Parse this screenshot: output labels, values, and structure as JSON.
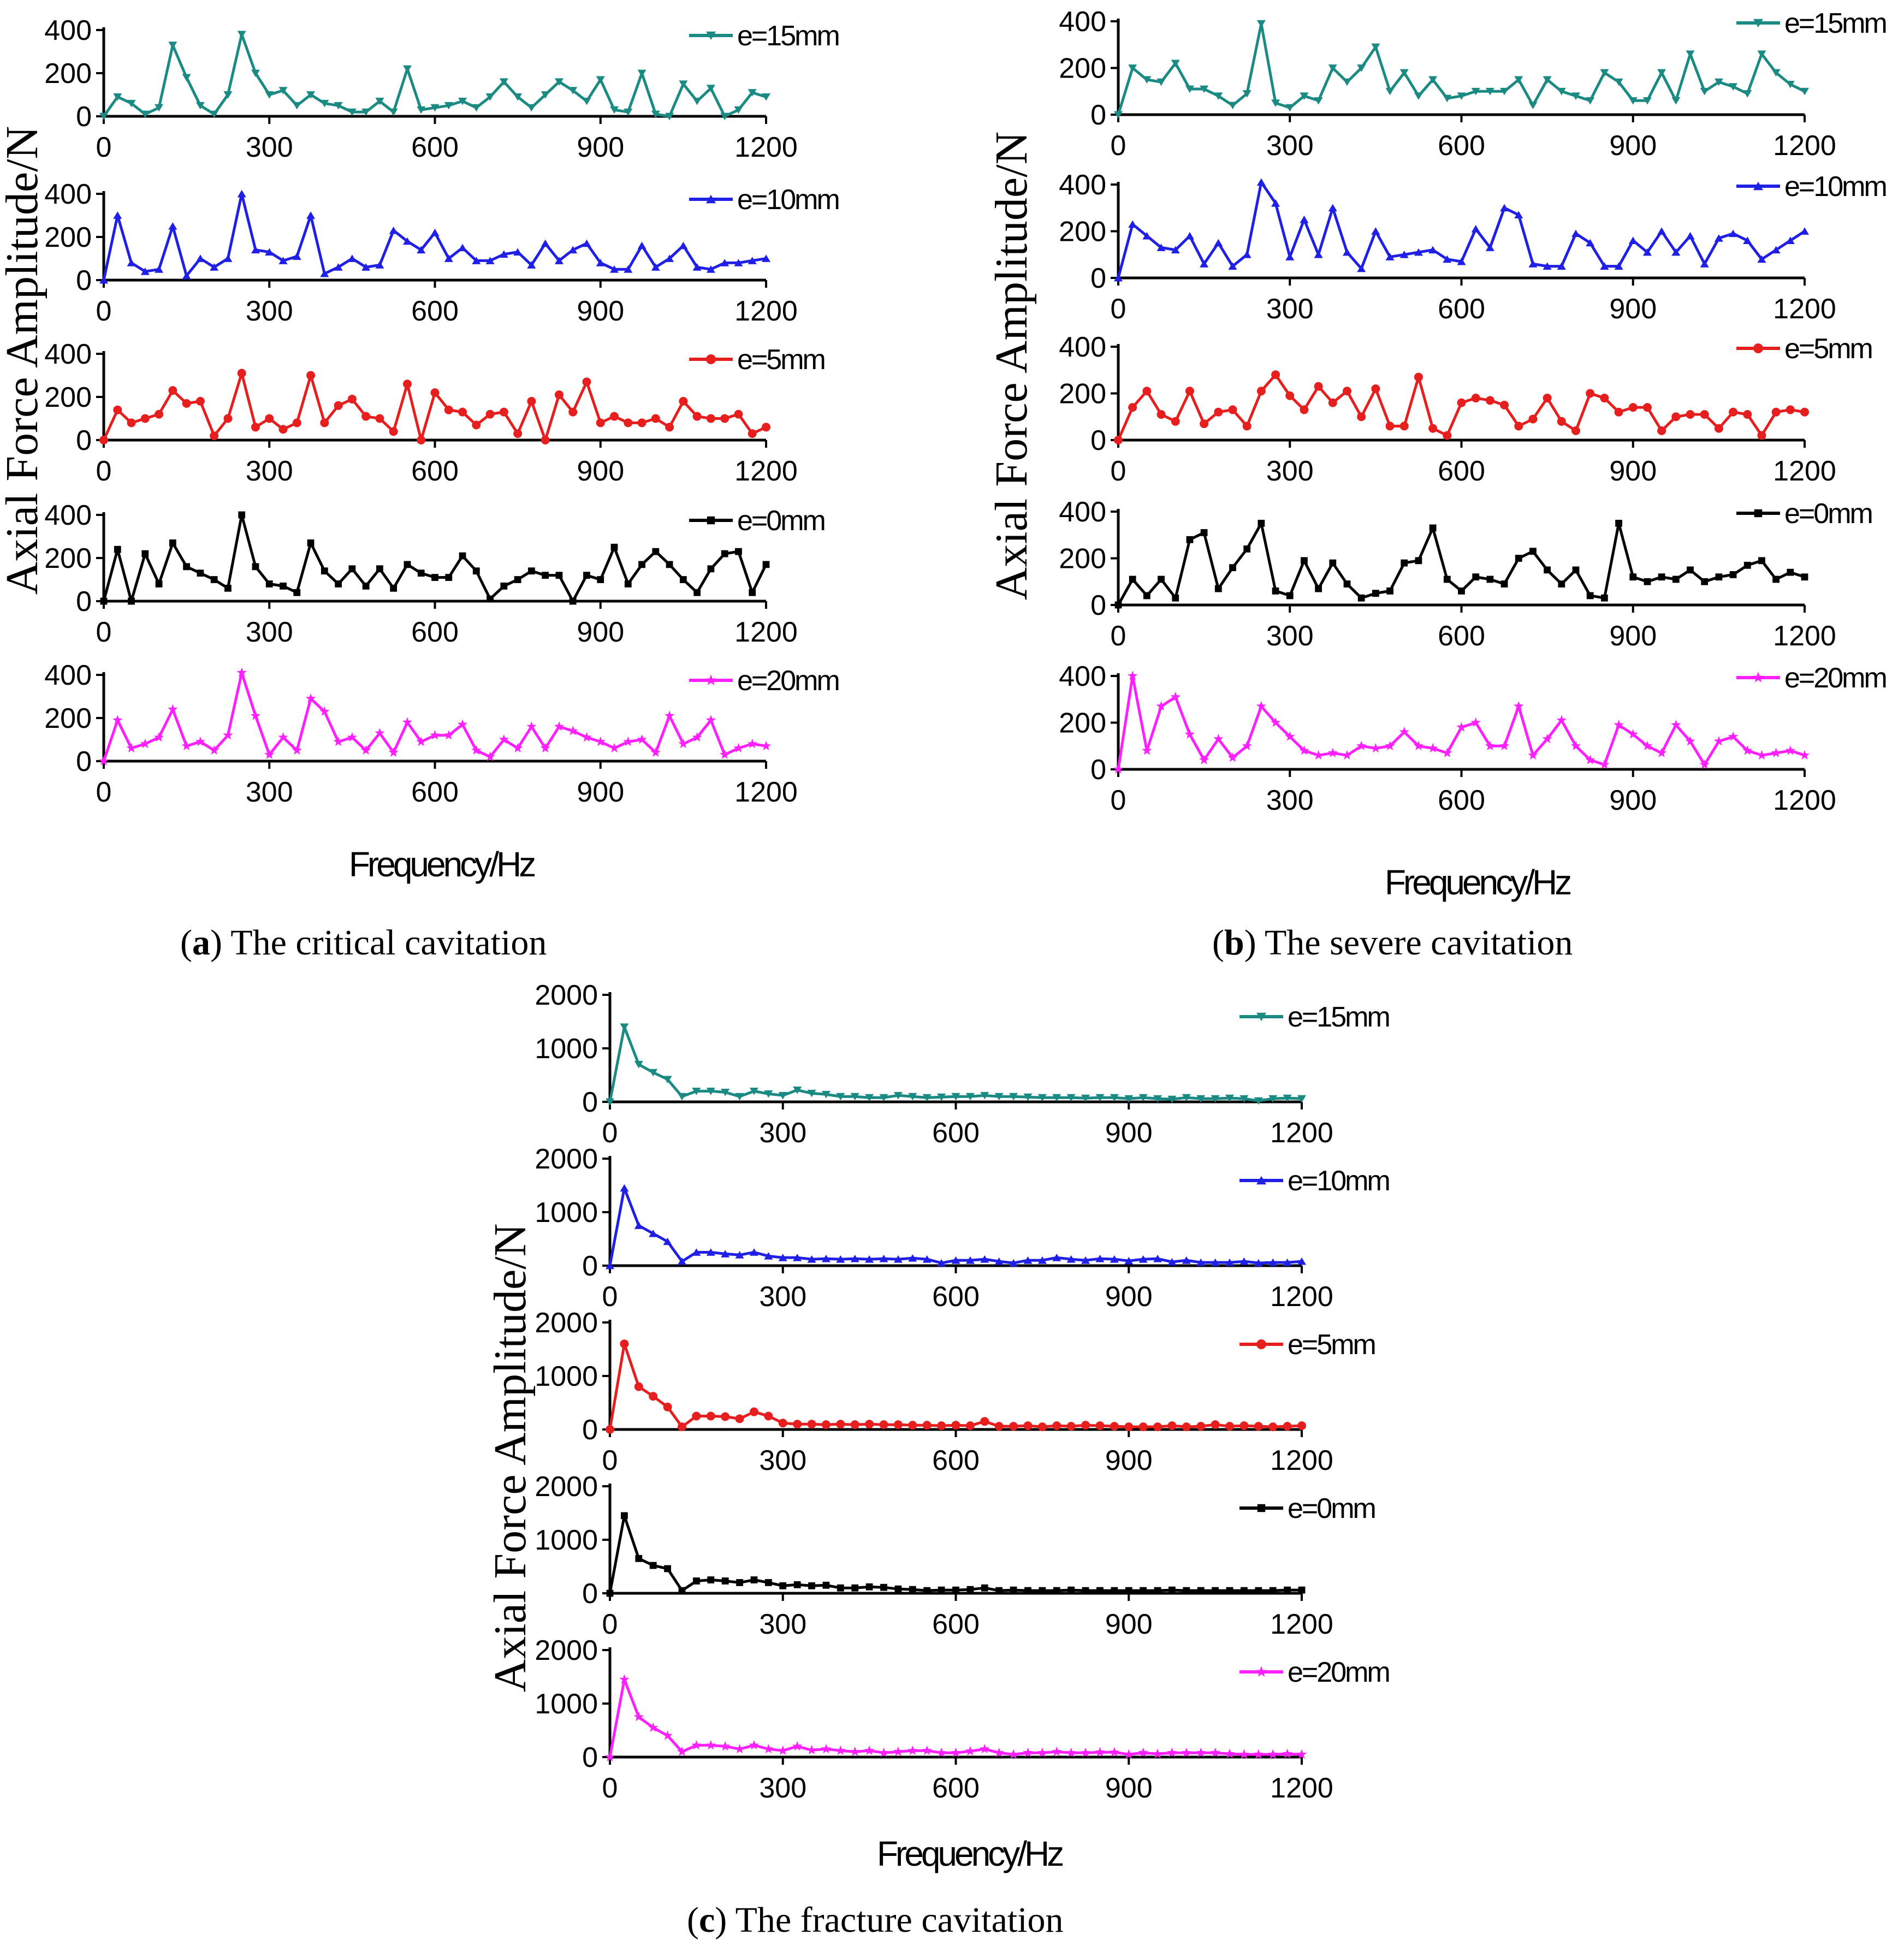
{
  "chart_data": [
    {
      "id": "a",
      "type": "line",
      "caption_letter": "a",
      "caption_text": ") The critical cavitation",
      "ylabel": "Axial Force Amplitude/N",
      "xlabel": "Frequency/Hz",
      "xlim": [
        0,
        1200
      ],
      "xticks": [
        0,
        300,
        600,
        900,
        1200
      ],
      "ylim": [
        0,
        400
      ],
      "yticks": [
        0,
        200,
        400
      ],
      "series": [
        {
          "name": "e=15mm",
          "color": "#1a8a82",
          "marker": "triangle-down",
          "values": [
            0,
            90,
            60,
            10,
            40,
            330,
            180,
            50,
            10,
            100,
            380,
            200,
            100,
            120,
            50,
            100,
            60,
            50,
            20,
            20,
            70,
            20,
            220,
            30,
            40,
            50,
            70,
            40,
            90,
            160,
            90,
            40,
            100,
            160,
            120,
            70,
            170,
            30,
            20,
            200,
            10,
            0,
            150,
            70,
            130,
            0,
            30,
            110,
            90
          ]
        },
        {
          "name": "e=10mm",
          "color": "#1f1fe6",
          "marker": "triangle-up",
          "values": [
            0,
            300,
            80,
            40,
            50,
            250,
            20,
            100,
            60,
            100,
            400,
            140,
            130,
            90,
            110,
            300,
            30,
            60,
            100,
            60,
            70,
            230,
            180,
            140,
            220,
            100,
            150,
            90,
            90,
            120,
            130,
            70,
            170,
            90,
            140,
            170,
            80,
            50,
            50,
            160,
            60,
            100,
            160,
            60,
            50,
            80,
            80,
            90,
            100
          ]
        },
        {
          "name": "e=5mm",
          "color": "#e61e1e",
          "marker": "circle",
          "values": [
            0,
            140,
            80,
            100,
            120,
            230,
            170,
            180,
            20,
            100,
            310,
            60,
            100,
            50,
            80,
            300,
            80,
            160,
            190,
            110,
            100,
            40,
            260,
            0,
            220,
            140,
            130,
            70,
            120,
            130,
            30,
            180,
            0,
            210,
            130,
            270,
            80,
            110,
            80,
            80,
            100,
            60,
            180,
            110,
            100,
            100,
            120,
            30,
            60
          ]
        },
        {
          "name": "e=0mm",
          "color": "#000000",
          "marker": "square",
          "values": [
            0,
            240,
            0,
            220,
            80,
            270,
            160,
            130,
            100,
            60,
            400,
            160,
            80,
            70,
            40,
            270,
            140,
            80,
            150,
            70,
            150,
            60,
            170,
            130,
            110,
            110,
            210,
            140,
            10,
            70,
            100,
            140,
            120,
            120,
            0,
            120,
            100,
            250,
            80,
            170,
            230,
            170,
            100,
            40,
            150,
            220,
            230,
            40,
            170
          ]
        },
        {
          "name": "e=20mm",
          "color": "#ff20ff",
          "marker": "star",
          "values": [
            0,
            190,
            60,
            80,
            110,
            240,
            70,
            90,
            50,
            120,
            410,
            210,
            30,
            110,
            50,
            290,
            230,
            90,
            110,
            50,
            130,
            40,
            180,
            90,
            120,
            120,
            170,
            50,
            20,
            100,
            60,
            160,
            60,
            160,
            140,
            110,
            90,
            60,
            90,
            100,
            40,
            210,
            80,
            110,
            190,
            30,
            60,
            80,
            70
          ]
        }
      ]
    },
    {
      "id": "b",
      "type": "line",
      "caption_letter": "b",
      "caption_text": ") The severe cavitation",
      "ylabel": "Axial Force Amplitude/N",
      "xlabel": "Frequency/Hz",
      "xlim": [
        0,
        1200
      ],
      "xticks": [
        0,
        300,
        600,
        900,
        1200
      ],
      "ylim": [
        0,
        400
      ],
      "yticks": [
        0,
        200,
        400
      ],
      "series": [
        {
          "name": "e=15mm",
          "color": "#1a8a82",
          "marker": "triangle-down",
          "values": [
            0,
            200,
            150,
            140,
            220,
            110,
            110,
            80,
            40,
            90,
            390,
            50,
            30,
            80,
            60,
            200,
            140,
            200,
            290,
            100,
            180,
            80,
            150,
            70,
            80,
            100,
            100,
            100,
            150,
            40,
            150,
            100,
            80,
            60,
            180,
            140,
            60,
            60,
            180,
            60,
            260,
            100,
            140,
            120,
            90,
            260,
            180,
            130,
            100
          ]
        },
        {
          "name": "e=10mm",
          "color": "#1f1fe6",
          "marker": "triangle-up",
          "values": [
            0,
            230,
            180,
            130,
            120,
            180,
            60,
            150,
            50,
            100,
            410,
            320,
            90,
            250,
            100,
            300,
            110,
            40,
            200,
            90,
            100,
            110,
            120,
            80,
            70,
            210,
            130,
            300,
            270,
            60,
            50,
            50,
            190,
            150,
            50,
            50,
            160,
            110,
            200,
            110,
            180,
            60,
            170,
            190,
            160,
            80,
            120,
            160,
            200
          ]
        },
        {
          "name": "e=5mm",
          "color": "#e61e1e",
          "marker": "circle",
          "values": [
            0,
            140,
            210,
            110,
            80,
            210,
            70,
            120,
            130,
            60,
            210,
            280,
            190,
            130,
            230,
            160,
            210,
            100,
            220,
            60,
            60,
            270,
            50,
            20,
            160,
            180,
            170,
            150,
            60,
            90,
            180,
            80,
            40,
            200,
            180,
            120,
            140,
            140,
            40,
            100,
            110,
            110,
            50,
            120,
            110,
            20,
            120,
            130,
            120
          ]
        },
        {
          "name": "e=0mm",
          "color": "#000000",
          "marker": "square",
          "values": [
            0,
            110,
            40,
            110,
            30,
            280,
            310,
            70,
            160,
            240,
            350,
            60,
            40,
            190,
            70,
            180,
            90,
            30,
            50,
            60,
            180,
            190,
            330,
            110,
            60,
            120,
            110,
            90,
            200,
            230,
            150,
            90,
            150,
            40,
            30,
            350,
            120,
            100,
            120,
            110,
            150,
            100,
            120,
            130,
            170,
            190,
            110,
            140,
            120
          ]
        },
        {
          "name": "e=20mm",
          "color": "#ff20ff",
          "marker": "star",
          "values": [
            0,
            400,
            80,
            270,
            310,
            150,
            40,
            130,
            50,
            100,
            270,
            200,
            140,
            80,
            60,
            70,
            60,
            100,
            90,
            100,
            160,
            100,
            90,
            70,
            180,
            200,
            100,
            100,
            270,
            60,
            130,
            210,
            100,
            40,
            20,
            190,
            150,
            100,
            70,
            190,
            120,
            20,
            120,
            140,
            80,
            60,
            70,
            80,
            60
          ]
        }
      ]
    },
    {
      "id": "c",
      "type": "line",
      "caption_letter": "c",
      "caption_text": ") The fracture cavitation",
      "ylabel": "Axial Force Amplitude/N",
      "xlabel": "Frequency/Hz",
      "xlim": [
        0,
        1200
      ],
      "xticks": [
        0,
        300,
        600,
        900,
        1200
      ],
      "ylim": [
        0,
        2000
      ],
      "yticks": [
        0,
        1000,
        2000
      ],
      "series": [
        {
          "name": "e=15mm",
          "color": "#1a8a82",
          "marker": "triangle-down",
          "values": [
            0,
            1400,
            700,
            550,
            420,
            100,
            200,
            200,
            180,
            100,
            200,
            150,
            120,
            220,
            160,
            140,
            100,
            100,
            80,
            80,
            120,
            100,
            80,
            90,
            100,
            100,
            120,
            100,
            100,
            90,
            80,
            80,
            80,
            70,
            80,
            80,
            60,
            80,
            60,
            50,
            80,
            60,
            60,
            70,
            60,
            20,
            60,
            70,
            60
          ]
        },
        {
          "name": "e=10mm",
          "color": "#1f1fe6",
          "marker": "triangle-up",
          "values": [
            0,
            1450,
            750,
            600,
            450,
            80,
            250,
            250,
            220,
            200,
            250,
            180,
            150,
            150,
            120,
            130,
            120,
            130,
            120,
            130,
            120,
            140,
            120,
            50,
            100,
            100,
            120,
            80,
            50,
            100,
            100,
            150,
            120,
            100,
            130,
            120,
            90,
            120,
            130,
            70,
            100,
            60,
            60,
            60,
            80,
            50,
            60,
            60,
            80
          ]
        },
        {
          "name": "e=5mm",
          "color": "#e61e1e",
          "marker": "circle",
          "values": [
            0,
            1600,
            800,
            620,
            420,
            50,
            250,
            250,
            240,
            200,
            330,
            250,
            120,
            100,
            100,
            90,
            100,
            90,
            100,
            90,
            90,
            80,
            80,
            70,
            80,
            70,
            150,
            60,
            60,
            70,
            50,
            70,
            60,
            80,
            70,
            60,
            50,
            50,
            50,
            70,
            50,
            60,
            90,
            60,
            70,
            60,
            50,
            60,
            70
          ]
        },
        {
          "name": "e=0mm",
          "color": "#000000",
          "marker": "square",
          "values": [
            0,
            1450,
            650,
            520,
            460,
            50,
            230,
            250,
            230,
            200,
            250,
            200,
            140,
            160,
            140,
            150,
            100,
            100,
            120,
            110,
            80,
            70,
            50,
            60,
            60,
            70,
            100,
            50,
            60,
            50,
            50,
            50,
            60,
            50,
            50,
            50,
            50,
            50,
            50,
            60,
            50,
            50,
            50,
            50,
            50,
            50,
            50,
            60,
            60
          ]
        },
        {
          "name": "e=20mm",
          "color": "#ff20ff",
          "marker": "star",
          "values": [
            0,
            1450,
            750,
            550,
            400,
            100,
            220,
            220,
            200,
            150,
            220,
            150,
            120,
            200,
            130,
            150,
            120,
            100,
            120,
            80,
            100,
            120,
            120,
            80,
            80,
            110,
            150,
            80,
            50,
            80,
            80,
            100,
            80,
            80,
            90,
            90,
            50,
            80,
            60,
            80,
            80,
            80,
            80,
            60,
            50,
            50,
            50,
            60,
            50
          ]
        }
      ]
    }
  ]
}
